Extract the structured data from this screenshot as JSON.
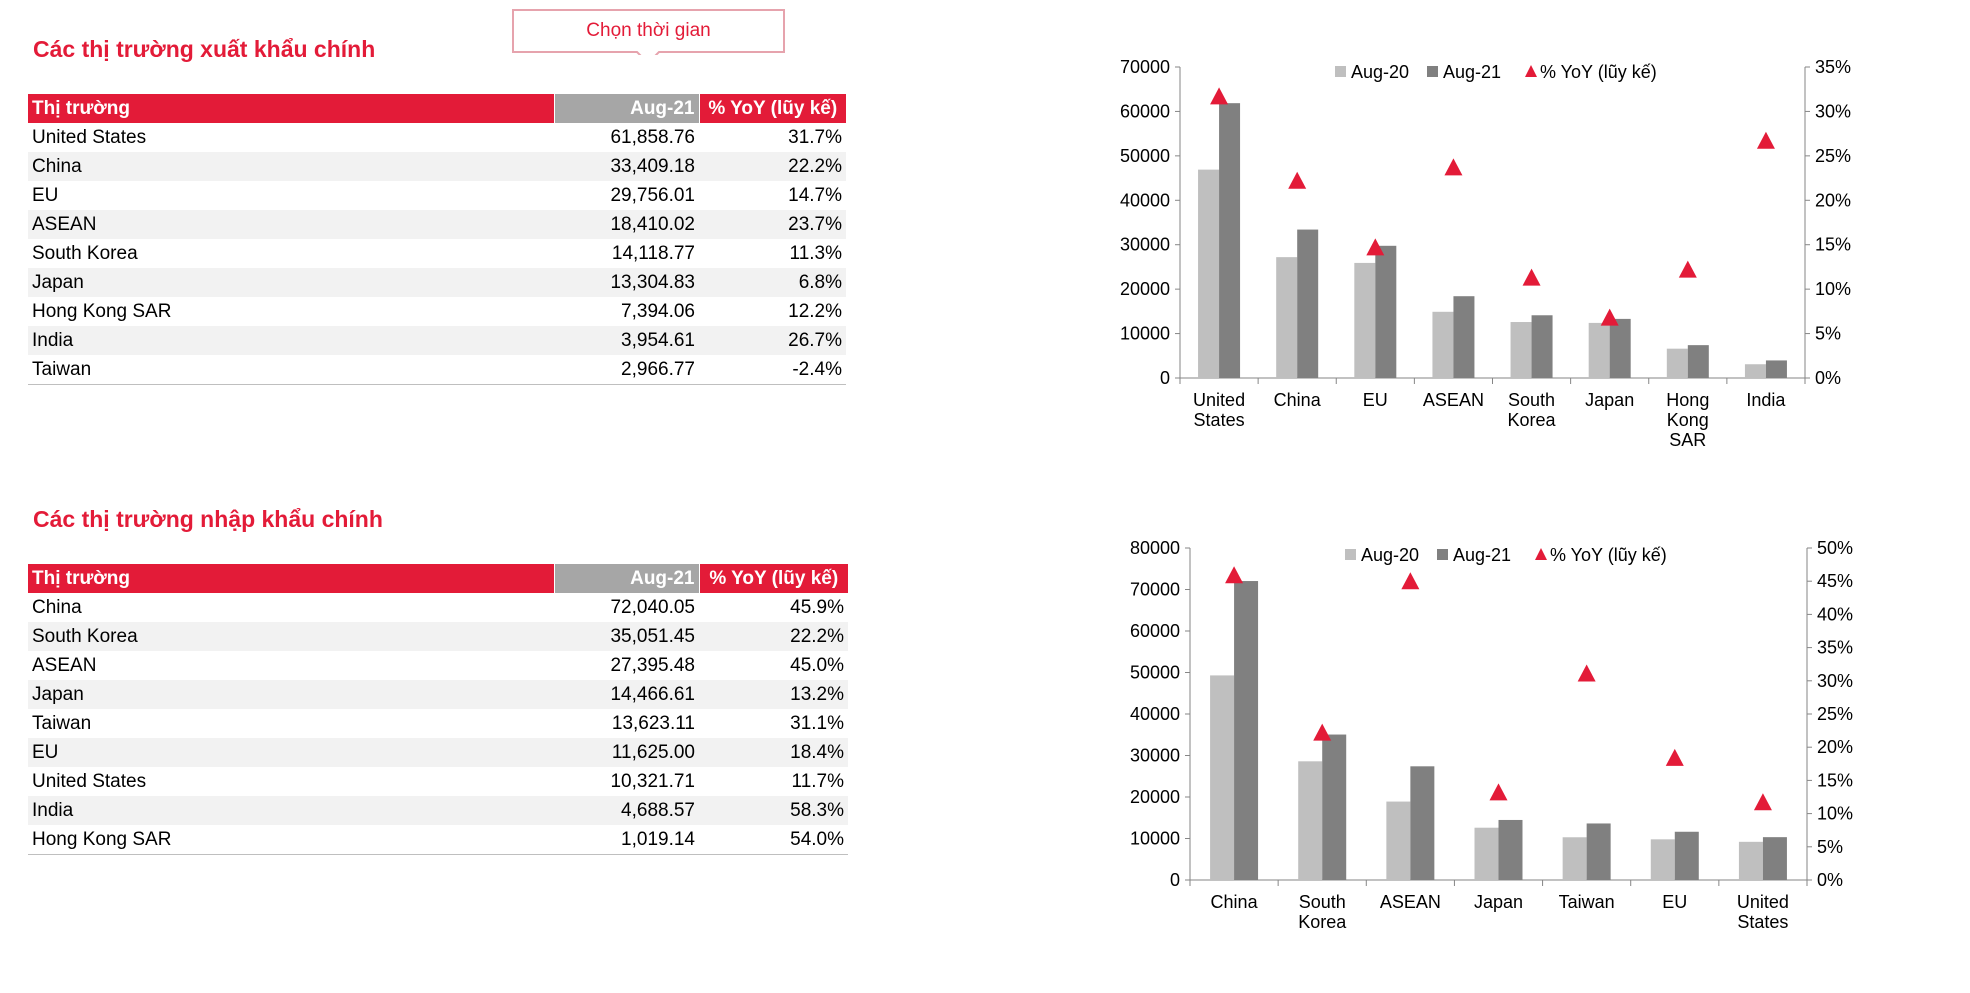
{
  "callout": {
    "label": "Chọn thời gian"
  },
  "export": {
    "title": "Các thị trường xuất khẩu chính",
    "headers": [
      "Thị trường",
      "Aug-21",
      "% YoY (lũy kế)"
    ],
    "rows": [
      [
        "United States",
        "61,858.76",
        "31.7%"
      ],
      [
        "China",
        "33,409.18",
        "22.2%"
      ],
      [
        "EU",
        "29,756.01",
        "14.7%"
      ],
      [
        "ASEAN",
        "18,410.02",
        "23.7%"
      ],
      [
        "South Korea",
        "14,118.77",
        "11.3%"
      ],
      [
        "Japan",
        "13,304.83",
        "6.8%"
      ],
      [
        "Hong Kong SAR",
        "7,394.06",
        "12.2%"
      ],
      [
        "India",
        "3,954.61",
        "26.7%"
      ],
      [
        "Taiwan",
        "2,966.77",
        "-2.4%"
      ]
    ]
  },
  "import": {
    "title": "Các thị trường nhập khẩu chính",
    "headers": [
      "Thị trường",
      "Aug-21",
      "% YoY (lũy kế)"
    ],
    "rows": [
      [
        "China",
        "72,040.05",
        "45.9%"
      ],
      [
        "South Korea",
        "35,051.45",
        "22.2%"
      ],
      [
        "ASEAN",
        "27,395.48",
        "45.0%"
      ],
      [
        "Japan",
        "14,466.61",
        "13.2%"
      ],
      [
        "Taiwan",
        "13,623.11",
        "31.1%"
      ],
      [
        "EU",
        "11,625.00",
        "18.4%"
      ],
      [
        "United States",
        "10,321.71",
        "11.7%"
      ],
      [
        "India",
        "4,688.57",
        "58.3%"
      ],
      [
        "Hong Kong SAR",
        "1,019.14",
        "54.0%"
      ]
    ]
  },
  "colors": {
    "accent": "#e31b38",
    "bar_aug20": "#bfbfbf",
    "bar_aug21": "#808080",
    "header_gray": "#a6a6a6",
    "row_alt": "#f2f2f2"
  },
  "chart_data": [
    {
      "type": "bar",
      "categories": [
        [
          "United",
          "States"
        ],
        [
          "China"
        ],
        [
          "EU"
        ],
        [
          "ASEAN"
        ],
        [
          "South",
          "Korea"
        ],
        [
          "Japan"
        ],
        [
          "Hong",
          "Kong",
          "SAR"
        ],
        [
          "India"
        ]
      ],
      "series": [
        {
          "name": "Aug-20",
          "type": "bar",
          "axis": "left",
          "values": [
            46900,
            27200,
            25900,
            14900,
            12600,
            12400,
            6600,
            3100
          ]
        },
        {
          "name": "Aug-21",
          "type": "bar",
          "axis": "left",
          "values": [
            61858.76,
            33409.18,
            29756.01,
            18410.02,
            14118.77,
            13304.83,
            7394.06,
            3954.61
          ]
        },
        {
          "name": "% YoY (lũy kế)",
          "type": "marker",
          "marker": "triangle",
          "axis": "right",
          "values": [
            31.7,
            22.2,
            14.7,
            23.7,
            11.3,
            6.8,
            12.2,
            26.7
          ]
        }
      ],
      "y_left": {
        "min": 0,
        "max": 70000,
        "ticks": [
          "0",
          "10000",
          "20000",
          "30000",
          "40000",
          "50000",
          "60000",
          "70000"
        ]
      },
      "y_right": {
        "min": 0,
        "max": 35,
        "ticks": [
          "0%",
          "5%",
          "10%",
          "15%",
          "20%",
          "25%",
          "30%",
          "35%"
        ]
      },
      "legend_position": "top",
      "grid": false
    },
    {
      "type": "bar",
      "categories": [
        [
          "China"
        ],
        [
          "South",
          "Korea"
        ],
        [
          "ASEAN"
        ],
        [
          "Japan"
        ],
        [
          "Taiwan"
        ],
        [
          "EU"
        ],
        [
          "United",
          "States"
        ]
      ],
      "series": [
        {
          "name": "Aug-20",
          "type": "bar",
          "axis": "left",
          "values": [
            49300,
            28600,
            18900,
            12600,
            10300,
            9800,
            9200
          ]
        },
        {
          "name": "Aug-21",
          "type": "bar",
          "axis": "left",
          "values": [
            72040.05,
            35051.45,
            27395.48,
            14466.61,
            13623.11,
            11625.0,
            10321.71
          ]
        },
        {
          "name": "% YoY (lũy kế)",
          "type": "marker",
          "marker": "triangle",
          "axis": "right",
          "values": [
            45.9,
            22.2,
            45.0,
            13.2,
            31.1,
            18.4,
            11.7
          ]
        }
      ],
      "y_left": {
        "min": 0,
        "max": 80000,
        "ticks": [
          "0",
          "10000",
          "20000",
          "30000",
          "40000",
          "50000",
          "60000",
          "70000",
          "80000"
        ]
      },
      "y_right": {
        "min": 0,
        "max": 50,
        "ticks": [
          "0%",
          "5%",
          "10%",
          "15%",
          "20%",
          "25%",
          "30%",
          "35%",
          "40%",
          "45%",
          "50%"
        ]
      },
      "legend_position": "top",
      "grid": false
    }
  ]
}
